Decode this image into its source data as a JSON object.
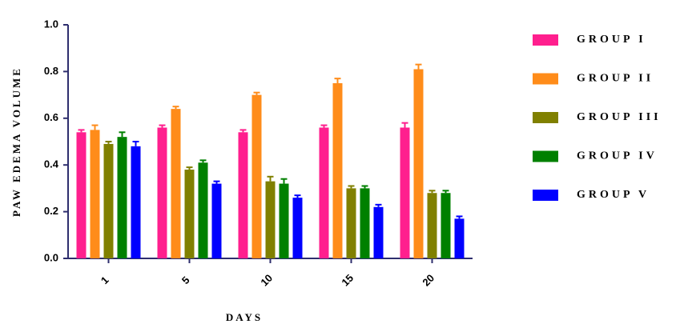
{
  "chart_data": {
    "type": "bar",
    "x_label": "DAYS",
    "y_label": "PAW EDEMA VOLUME",
    "categories": [
      "1",
      "5",
      "10",
      "15",
      "20"
    ],
    "series": [
      {
        "name": "GROUP I",
        "color": "#ff1f8e",
        "values": [
          0.54,
          0.56,
          0.54,
          0.56,
          0.56
        ],
        "errors": [
          0.01,
          0.01,
          0.01,
          0.01,
          0.02
        ]
      },
      {
        "name": "GROUP II",
        "color": "#ff8c1a",
        "values": [
          0.55,
          0.64,
          0.7,
          0.75,
          0.81
        ],
        "errors": [
          0.02,
          0.01,
          0.01,
          0.02,
          0.02
        ]
      },
      {
        "name": "GROUP III",
        "color": "#808000",
        "values": [
          0.49,
          0.38,
          0.33,
          0.3,
          0.28
        ],
        "errors": [
          0.01,
          0.01,
          0.02,
          0.01,
          0.01
        ]
      },
      {
        "name": "GROUP IV",
        "color": "#008000",
        "values": [
          0.52,
          0.41,
          0.32,
          0.3,
          0.28
        ],
        "errors": [
          0.02,
          0.01,
          0.02,
          0.01,
          0.01
        ]
      },
      {
        "name": "GROUP V",
        "color": "#0000ff",
        "values": [
          0.48,
          0.32,
          0.26,
          0.22,
          0.17
        ],
        "errors": [
          0.02,
          0.01,
          0.01,
          0.01,
          0.01
        ]
      }
    ],
    "ylim": [
      0,
      1.0
    ],
    "yticks": [
      {
        "value": 0,
        "label": "0.0"
      },
      0.2,
      0.4,
      0.6,
      0.8,
      {
        "value": 1.0,
        "label": "1.0"
      }
    ],
    "grid": false
  }
}
